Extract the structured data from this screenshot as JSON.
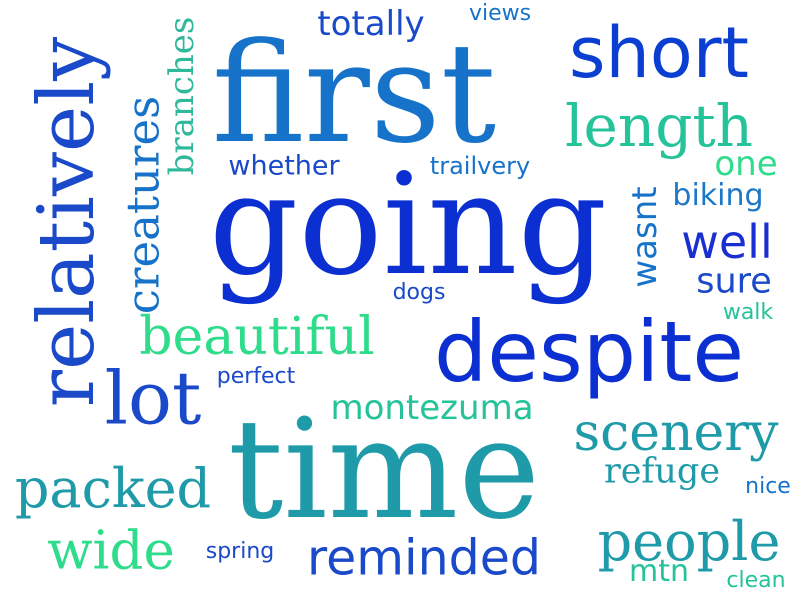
{
  "colors": {
    "background": "#ffffff",
    "dark_blue": "#0b2fd1",
    "blue": "#1a49c9",
    "mid_blue": "#1673c9",
    "teal": "#1e9aa8",
    "green_teal": "#25c39a",
    "green": "#2fdc8b"
  },
  "words": {
    "relatively": "relatively",
    "creatures": "creatures",
    "branches": "branches",
    "totally": "totally",
    "views": "views",
    "first": "first",
    "short": "short",
    "length": "length",
    "whether": "whether",
    "trailvery": "trailvery",
    "one": "one",
    "going": "going",
    "wasnt": "wasnt",
    "biking": "biking",
    "well": "well",
    "sure": "sure",
    "dogs": "dogs",
    "walk": "walk",
    "beautiful": "beautiful",
    "despite": "despite",
    "perfect": "perfect",
    "lot": "lot",
    "montezuma": "montezuma",
    "scenery": "scenery",
    "time": "time",
    "packed": "packed",
    "refuge": "refuge",
    "nice": "nice",
    "wide": "wide",
    "spring": "spring",
    "reminded": "reminded",
    "people": "people",
    "mtn": "mtn",
    "clean": "clean"
  }
}
